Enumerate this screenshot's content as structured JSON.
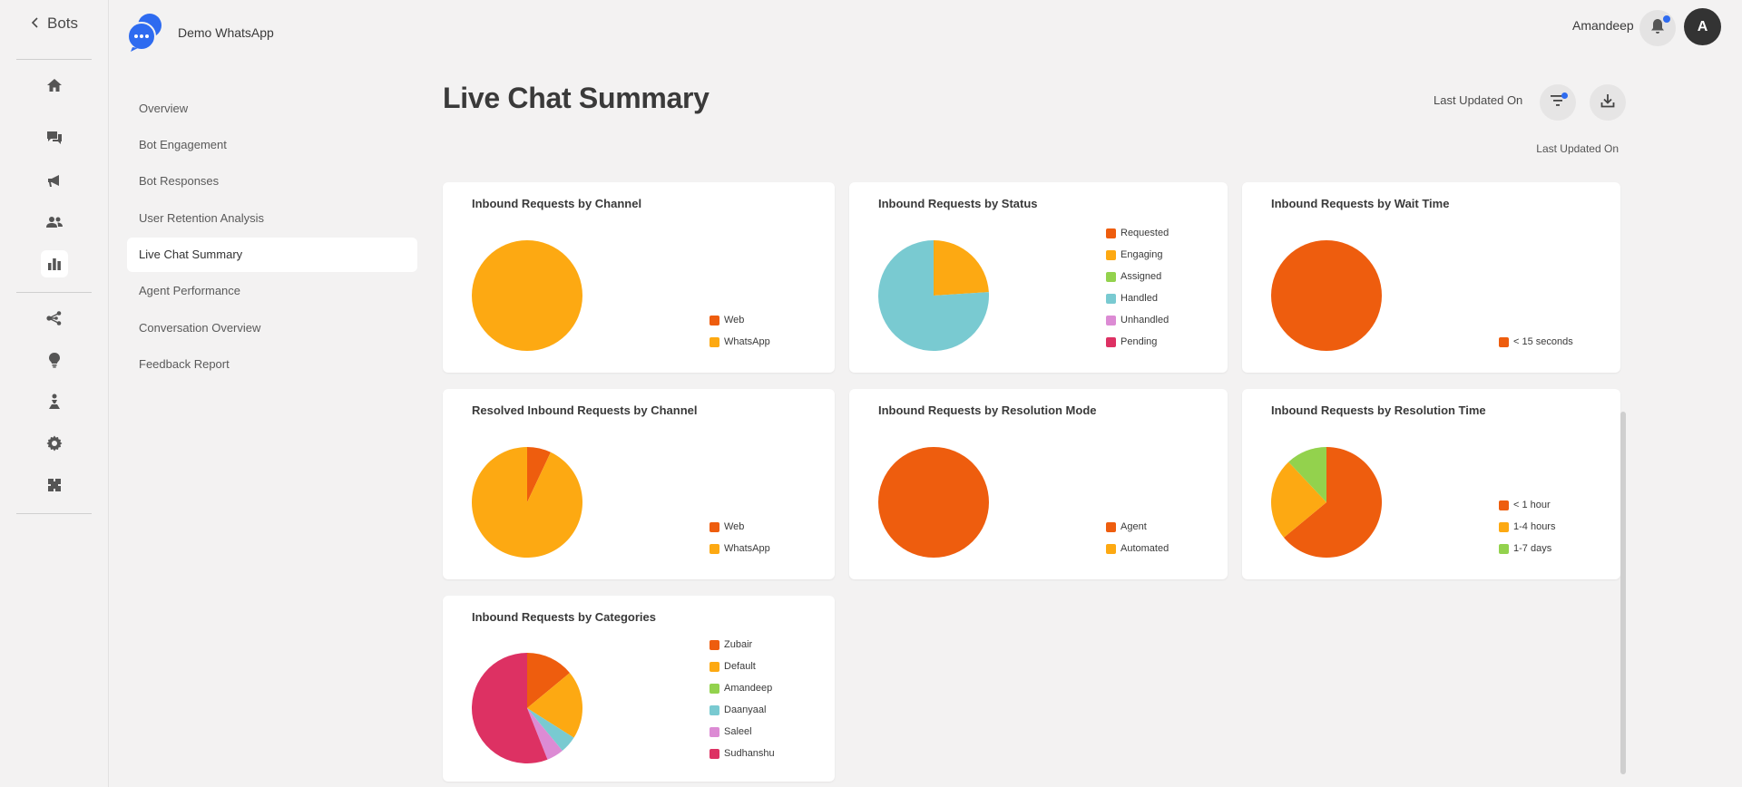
{
  "rail": {
    "back_label": "Bots",
    "icons": [
      "home-icon",
      "chat-icon",
      "megaphone-icon",
      "users-icon",
      "analytics-icon",
      "flow-icon",
      "bulb-icon",
      "hierarchy-icon",
      "gear-icon",
      "puzzle-icon"
    ]
  },
  "brand": {
    "name": "Demo WhatsApp",
    "logo_color": "#2e6bf0"
  },
  "user": {
    "name": "Amandeep",
    "avatar_letter": "A"
  },
  "subnav": {
    "items": [
      {
        "label": "Overview"
      },
      {
        "label": "Bot Engagement"
      },
      {
        "label": "Bot Responses"
      },
      {
        "label": "User Retention Analysis"
      },
      {
        "label": "Live Chat Summary"
      },
      {
        "label": "Agent Performance"
      },
      {
        "label": "Conversation Overview"
      },
      {
        "label": "Feedback Report"
      }
    ],
    "active_index": 4
  },
  "header": {
    "title": "Live Chat Summary",
    "last_updated_label": "Last Updated On",
    "last_updated_label_2": "Last Updated On"
  },
  "colors": {
    "orange_dark": "#ee5d0e",
    "orange": "#fda912",
    "green": "#93d24d",
    "teal": "#79cad1",
    "pink_light": "#dc8bd4",
    "magenta": "#dd3163",
    "accent": "#2e6bf0"
  },
  "chart_data": [
    {
      "type": "pie",
      "title": "Inbound Requests by Channel",
      "categories": [
        "Web",
        "WhatsApp"
      ],
      "values": [
        0,
        100
      ],
      "colors": [
        "#ee5d0e",
        "#fda912"
      ]
    },
    {
      "type": "pie",
      "title": "Inbound Requests by Status",
      "categories": [
        "Requested",
        "Engaging",
        "Assigned",
        "Handled",
        "Unhandled",
        "Pending"
      ],
      "values": [
        0,
        24,
        0,
        76,
        0,
        0
      ],
      "colors": [
        "#ee5d0e",
        "#fda912",
        "#93d24d",
        "#79cad1",
        "#dc8bd4",
        "#dd3163"
      ]
    },
    {
      "type": "pie",
      "title": "Inbound Requests by Wait Time",
      "categories": [
        "< 15 seconds"
      ],
      "values": [
        100
      ],
      "colors": [
        "#ee5d0e"
      ]
    },
    {
      "type": "pie",
      "title": "Resolved Inbound Requests by Channel",
      "categories": [
        "Web",
        "WhatsApp"
      ],
      "values": [
        7,
        93
      ],
      "colors": [
        "#ee5d0e",
        "#fda912"
      ]
    },
    {
      "type": "pie",
      "title": "Inbound Requests by Resolution Mode",
      "categories": [
        "Agent",
        "Automated"
      ],
      "values": [
        100,
        0
      ],
      "colors": [
        "#ee5d0e",
        "#fda912"
      ]
    },
    {
      "type": "pie",
      "title": "Inbound Requests by Resolution Time",
      "categories": [
        "< 1 hour",
        "1-4 hours",
        "1-7 days"
      ],
      "values": [
        64,
        24,
        12
      ],
      "colors": [
        "#ee5d0e",
        "#fda912",
        "#93d24d"
      ]
    },
    {
      "type": "pie",
      "title": "Inbound Requests by Categories",
      "categories": [
        "Zubair",
        "Default",
        "Amandeep",
        "Daanyaal",
        "Saleel",
        "Sudhanshu"
      ],
      "values": [
        14,
        20,
        0,
        5,
        5,
        56
      ],
      "colors": [
        "#ee5d0e",
        "#fda912",
        "#93d24d",
        "#79cad1",
        "#dc8bd4",
        "#dd3163"
      ]
    }
  ]
}
